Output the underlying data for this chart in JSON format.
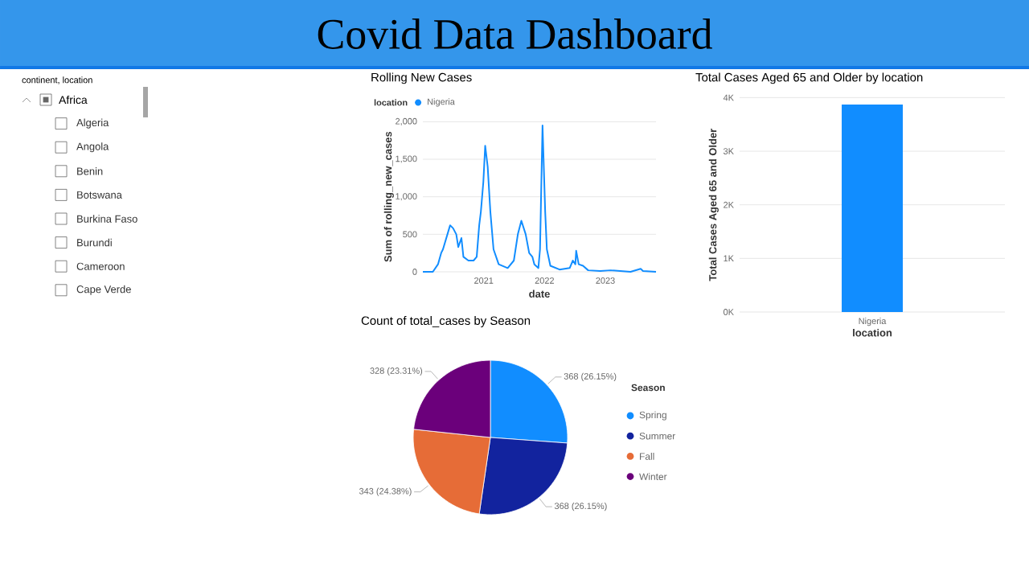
{
  "chart_data": [
    {
      "type": "other",
      "title": "Covid Data Dashboard"
    },
    {
      "type": "other",
      "title": "continent, location",
      "annotations": [
        "Africa",
        "Algeria",
        "Angola",
        "Benin",
        "Botswana",
        "Burkina Faso",
        "Burundi",
        "Cameroon",
        "Cape Verde"
      ]
    },
    {
      "type": "line",
      "title": "Rolling New Cases",
      "xlabel": "date",
      "ylabel": "Sum of rolling_new_cases",
      "legend_title": "location",
      "legend": "top left",
      "grid": "y",
      "x": [
        "2020-01-01",
        "2020-03-01",
        "2020-04-01",
        "2020-04-20",
        "2020-05-01",
        "2020-06-13",
        "2020-07-01",
        "2020-07-20",
        "2020-08-01",
        "2020-08-20",
        "2020-09-01",
        "2020-10-01",
        "2020-11-01",
        "2020-11-20",
        "2020-12-05",
        "2020-12-15",
        "2020-12-30",
        "2021-01-10",
        "2021-01-25",
        "2021-02-10",
        "2021-03-01",
        "2021-04-01",
        "2021-05-25",
        "2021-07-01",
        "2021-07-25",
        "2021-08-15",
        "2021-09-10",
        "2021-10-01",
        "2021-10-20",
        "2021-11-01",
        "2021-11-25",
        "2021-12-05",
        "2021-12-20",
        "2022-01-05",
        "2022-01-15",
        "2022-02-05",
        "2022-04-01",
        "2022-06-01",
        "2022-06-20",
        "2022-07-05",
        "2022-07-10",
        "2022-07-25",
        "2022-08-20",
        "2022-09-20",
        "2022-12-01",
        "2023-02-01",
        "2023-06-01",
        "2023-08-01",
        "2023-08-15",
        "2023-11-01"
      ],
      "series": [
        {
          "name": "Nigeria",
          "color": "#118dff",
          "values": [
            0,
            0,
            100,
            250,
            300,
            620,
            580,
            500,
            330,
            450,
            200,
            150,
            150,
            200,
            620,
            800,
            1200,
            1680,
            1400,
            800,
            300,
            100,
            50,
            150,
            500,
            680,
            500,
            250,
            200,
            100,
            50,
            300,
            1950,
            800,
            300,
            80,
            30,
            50,
            150,
            100,
            280,
            100,
            80,
            20,
            10,
            20,
            0,
            40,
            10,
            0
          ]
        }
      ],
      "xlim": [
        "2020-01-01",
        "2023-11-01"
      ],
      "xticks": [
        "2021",
        "2022",
        "2023"
      ],
      "ylim": [
        0,
        2000
      ],
      "yticks": [
        0,
        500,
        {
          "value": 1000,
          "label": "1,000"
        },
        {
          "value": 1500,
          "label": "1,500"
        },
        {
          "value": 2000,
          "label": "2,000"
        }
      ]
    },
    {
      "type": "bar",
      "title": "Total Cases Aged 65 and Older by location",
      "xlabel": "location",
      "ylabel": "Total Cases Aged 65 and Older",
      "grid": "y",
      "categories": [
        "Nigeria"
      ],
      "values": [
        3870
      ],
      "color": "#118dff",
      "ylim": [
        0,
        4000
      ],
      "yticks": [
        {
          "value": 0,
          "label": "0K"
        },
        {
          "value": 1000,
          "label": "1K"
        },
        {
          "value": 2000,
          "label": "2K"
        },
        {
          "value": 3000,
          "label": "3K"
        },
        {
          "value": 4000,
          "label": "4K"
        }
      ]
    },
    {
      "type": "pie",
      "title": "Count of total_cases by Season",
      "legend_title": "Season",
      "legend": "right",
      "categories": [
        "Spring",
        "Summer",
        "Fall",
        "Winter"
      ],
      "values": [
        368,
        368,
        343,
        328
      ],
      "colors": [
        "#118dff",
        "#12239e",
        "#e66c37",
        "#6b007b"
      ],
      "value_labels": [
        "368 (26.15%)",
        "368 (26.15%)",
        "343 (24.38%)",
        "328 (23.31%)"
      ]
    }
  ]
}
